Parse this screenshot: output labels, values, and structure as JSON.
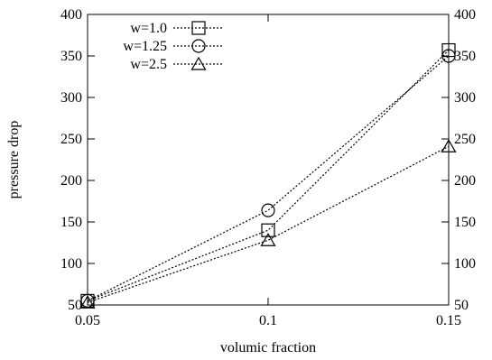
{
  "chart_data": {
    "type": "line",
    "title": "",
    "xlabel": "volumic fraction",
    "ylabel": "pressure drop",
    "x": [
      0.05,
      0.1,
      0.15
    ],
    "xlim": [
      0.05,
      0.15
    ],
    "ylim": [
      50,
      400
    ],
    "x_ticks": [
      "0.05",
      "0.1",
      "0.15"
    ],
    "y_ticks": [
      "50",
      "100",
      "150",
      "200",
      "250",
      "300",
      "350",
      "400"
    ],
    "y_ticks_right": [
      "50",
      "100",
      "150",
      "200",
      "250",
      "300",
      "350",
      "400"
    ],
    "grid": false,
    "legend_position": "top-left",
    "line_style": "dotted",
    "line_color": "#000000",
    "series": [
      {
        "name": "w=1.0",
        "marker": "square",
        "values": [
          55,
          140,
          357
        ]
      },
      {
        "name": "w=1.25",
        "marker": "circle",
        "values": [
          55,
          164,
          350
        ]
      },
      {
        "name": "w=2.5",
        "marker": "triangle",
        "values": [
          53,
          128,
          241
        ]
      }
    ]
  }
}
